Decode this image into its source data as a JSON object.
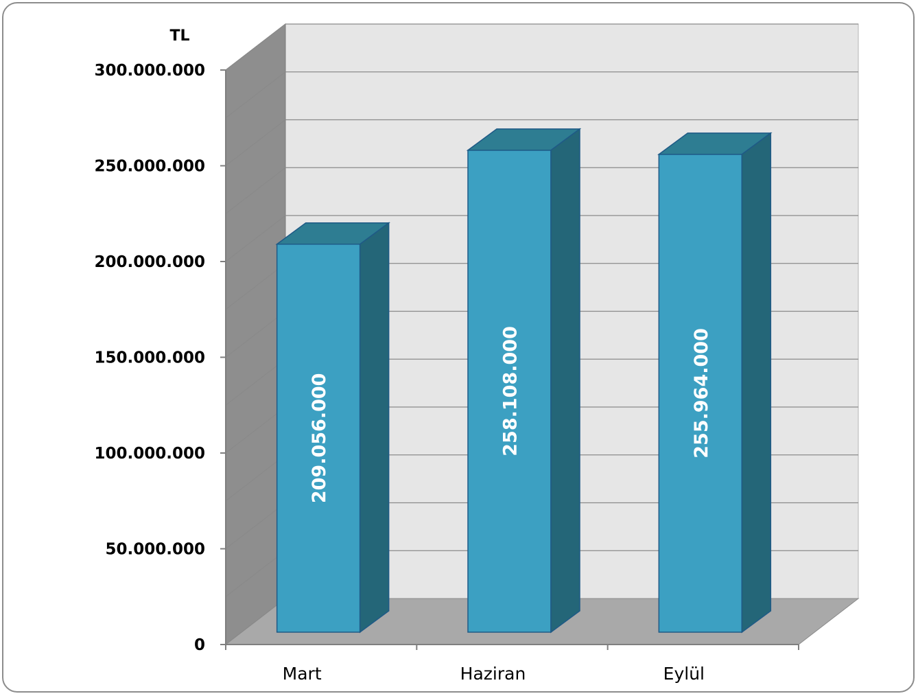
{
  "chart_data": {
    "type": "bar",
    "style": "3d-column",
    "unit_label": "TL",
    "categories": [
      "Mart",
      "Haziran",
      "Eylül"
    ],
    "values": [
      209056000,
      258108000,
      255964000
    ],
    "data_labels": [
      "209.056.000",
      "258.108.000",
      "255.964.000"
    ],
    "y_ticks": [
      0,
      50000000,
      100000000,
      150000000,
      200000000,
      250000000,
      300000000
    ],
    "y_tick_labels": [
      "0",
      "50.000.000",
      "100.000.000",
      "150.000.000",
      "200.000.000",
      "250.000.000",
      "300.000.000"
    ],
    "ylim": [
      0,
      300000000
    ],
    "grid": true,
    "legend": "none",
    "colors": {
      "bar_front": "#3ca0c2",
      "bar_top": "#2e7d92",
      "bar_side": "#246678",
      "back_wall": "#e6e6e6",
      "side_wall": "#8e8e8e",
      "floor": "#a9a9a9",
      "gridline": "#8a8a8a"
    }
  }
}
